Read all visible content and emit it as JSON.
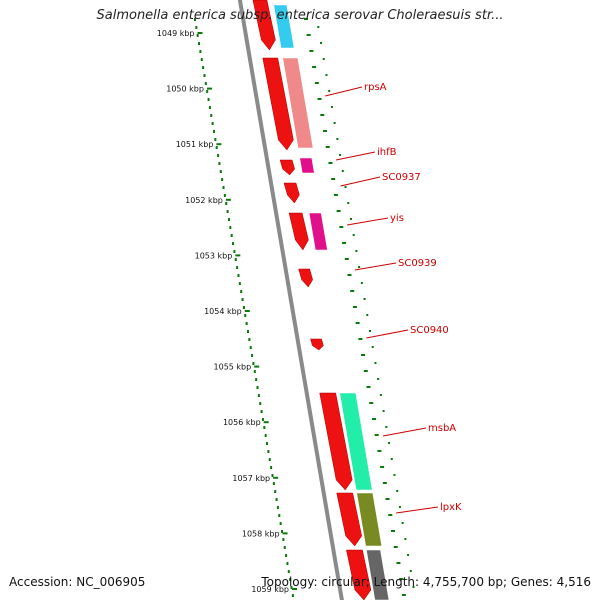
{
  "title": "Salmonella enterica subsp. enterica serovar Choleraesuis str...",
  "footer": {
    "accession": "Accession: NC_006905",
    "summary": "Topology: circular; Length: 4,755,700 bp; Genes: 4,516"
  },
  "colors": {
    "backbone": "#8a8a8a",
    "gc_skew": "#0a7a0a",
    "cds": "#ee1111",
    "label": "#cc0000",
    "cog_blue": "#33ccee",
    "cog_salmon": "#f08a8a",
    "cog_magenta": "#e0108a",
    "cog_teal": "#22eeaa",
    "cog_olive": "#7a8a22",
    "cog_gray": "#666666"
  },
  "scale": {
    "unit": "kbp",
    "ticks": [
      "1049 kbp",
      "1050 kbp",
      "1051 kbp",
      "1052 kbp",
      "1053 kbp",
      "1054 kbp",
      "1055 kbp",
      "1056 kbp",
      "1057 kbp",
      "1058 kbp",
      "1059 kbp"
    ]
  },
  "genes": [
    {
      "name": "rpsA",
      "cog_color": "#f08a8a"
    },
    {
      "name": "ihfB",
      "cog_color": "#e0108a"
    },
    {
      "name": "SC0937",
      "cog_color": ""
    },
    {
      "name": "yis",
      "cog_color": "#e0108a"
    },
    {
      "name": "SC0939",
      "cog_color": ""
    },
    {
      "name": "SC0940",
      "cog_color": ""
    },
    {
      "name": "msbA",
      "cog_color": "#22eeaa"
    },
    {
      "name": "lpxK",
      "cog_color": "#7a8a22"
    }
  ]
}
